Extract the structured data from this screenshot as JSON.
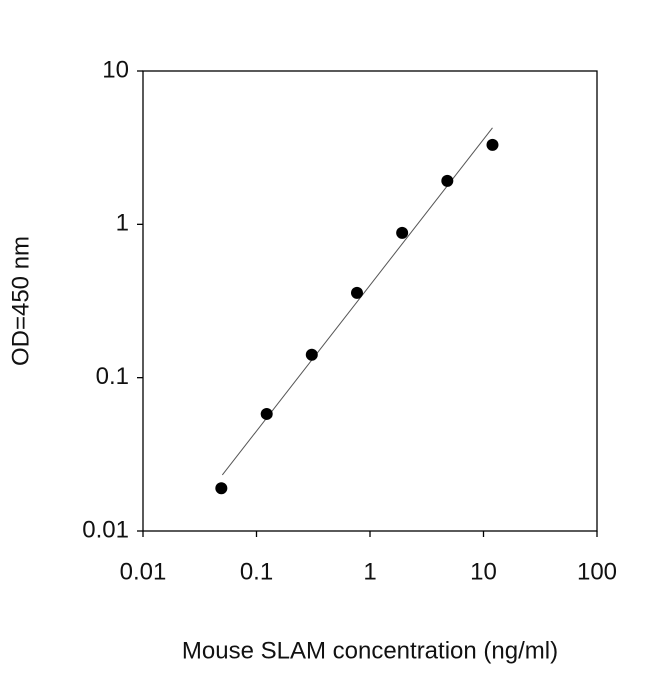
{
  "chart_data": {
    "type": "scatter",
    "xlabel": "Mouse SLAM concentration (ng/ml)",
    "ylabel": "OD=450 nm",
    "x": [
      0.049,
      0.123,
      0.307,
      0.768,
      1.92,
      4.8,
      12
    ],
    "series": [
      {
        "color": "#000000",
        "values": [
          0.019,
          0.058,
          0.141,
          0.357,
          0.879,
          1.92,
          3.3
        ]
      }
    ],
    "trendline": {
      "color": "#555555",
      "x": [
        0.05,
        12
      ],
      "y": [
        0.0232,
        4.26
      ]
    },
    "xscale": "log",
    "yscale": "log",
    "xlim": [
      0.01,
      100
    ],
    "ylim": [
      0.01,
      10
    ],
    "xticks": [
      0.01,
      0.1,
      1,
      10,
      100
    ],
    "yticks": [
      0.01,
      0.1,
      1,
      10
    ]
  }
}
